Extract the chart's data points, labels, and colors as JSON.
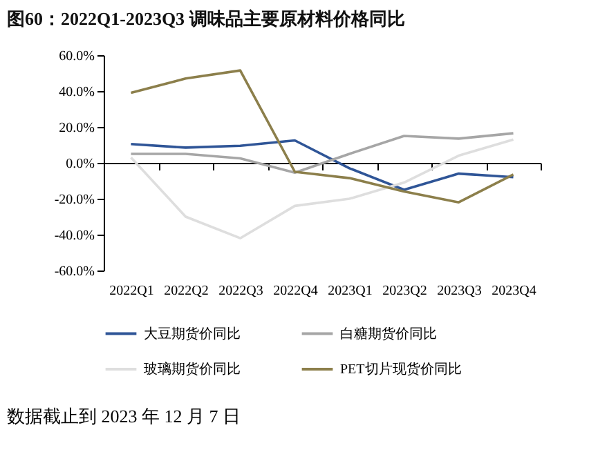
{
  "chart_data": {
    "type": "line",
    "title": "图60：2022Q1-2023Q3 调味品主要原材料价格同比",
    "categories": [
      "2022Q1",
      "2022Q2",
      "2022Q3",
      "2022Q4",
      "2023Q1",
      "2023Q2",
      "2023Q3",
      "2023Q4"
    ],
    "series": [
      {
        "name": "大豆期货价同比",
        "color": "#2f5597",
        "values": [
          10.5,
          8.5,
          9.5,
          12.5,
          -3,
          -15,
          -6,
          -8
        ]
      },
      {
        "name": "白糖期货价同比",
        "color": "#a6a6a6",
        "values": [
          5,
          5,
          2.5,
          -5.5,
          5,
          15,
          13.5,
          16.5
        ]
      },
      {
        "name": "玻璃期货价同比",
        "color": "#dedede",
        "values": [
          3,
          -30,
          -42,
          -24,
          -20,
          -11,
          4,
          13
        ]
      },
      {
        "name": "PET切片现货价同比",
        "color": "#8c7f4b",
        "values": [
          39,
          47,
          51.5,
          -5,
          -8.5,
          -16,
          -22,
          -6.5
        ]
      }
    ],
    "ylim": [
      -60,
      60
    ],
    "yticks": [
      {
        "value": -60,
        "label": "-60.0%"
      },
      {
        "value": -40,
        "label": "-40.0%"
      },
      {
        "value": -20,
        "label": "-20.0%"
      },
      {
        "value": 0,
        "label": "0.0%"
      },
      {
        "value": 20,
        "label": "20.0%"
      },
      {
        "value": 40,
        "label": "40.0%"
      },
      {
        "value": 60,
        "label": "60.0%"
      }
    ],
    "legend": "bottom",
    "marker": "none",
    "line_style": "solid",
    "annotations": [
      "数据截止到 2023 年 12 月 7 日"
    ]
  }
}
